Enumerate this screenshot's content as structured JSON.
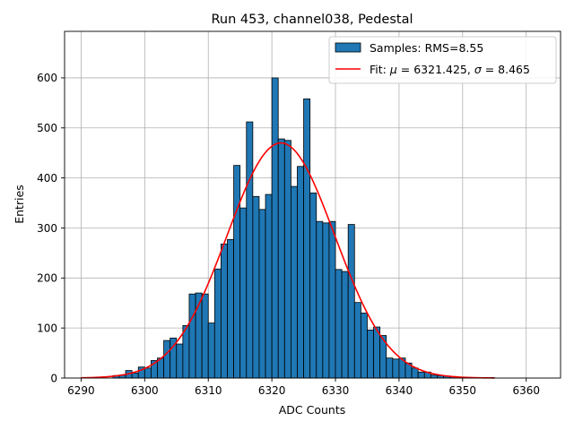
{
  "chart_data": {
    "type": "bar",
    "title": "Run 453, channel038, Pedestal",
    "xlabel": "ADC Counts",
    "ylabel": "Entries",
    "xlim": [
      6287.4,
      6365.4
    ],
    "ylim": [
      0,
      693
    ],
    "grid": true,
    "legend_position": "top-right",
    "x_ticks": [
      6290,
      6300,
      6310,
      6320,
      6330,
      6340,
      6350,
      6360
    ],
    "y_ticks": [
      0,
      100,
      200,
      300,
      400,
      500,
      600
    ],
    "histogram": {
      "name": "Samples: RMS=8.55",
      "color": "#1f77b4",
      "edge_color": "#000000",
      "bin_edges_start": 6295,
      "bin_width": 1,
      "counts": [
        5,
        6,
        15,
        10,
        22,
        20,
        35,
        40,
        75,
        80,
        68,
        105,
        168,
        170,
        168,
        110,
        218,
        268,
        277,
        425,
        340,
        512,
        363,
        337,
        367,
        600,
        478,
        475,
        383,
        423,
        558,
        370,
        313,
        310,
        313,
        217,
        213,
        307,
        151,
        130,
        96,
        102,
        85,
        40,
        38,
        40,
        30,
        20,
        12,
        12,
        6,
        5,
        4,
        3,
        2,
        1,
        1,
        1,
        1,
        1
      ]
    },
    "fit": {
      "name": "Fit: $\\mu$ = 6321.425, $\\sigma$ = 8.465",
      "color": "#ff0000",
      "mu": 6321.425,
      "sigma": 8.465,
      "amplitude": 470,
      "x_range": [
        6290,
        6355
      ]
    },
    "legend": [
      {
        "label_prefix": "Samples: RMS=8.55",
        "kind": "patch"
      },
      {
        "label_prefix": "Fit: ",
        "mu_symbol": "μ",
        "mu_text": " = 6321.425, ",
        "sigma_symbol": "σ",
        "sigma_text": " = 8.465",
        "kind": "line"
      }
    ]
  }
}
